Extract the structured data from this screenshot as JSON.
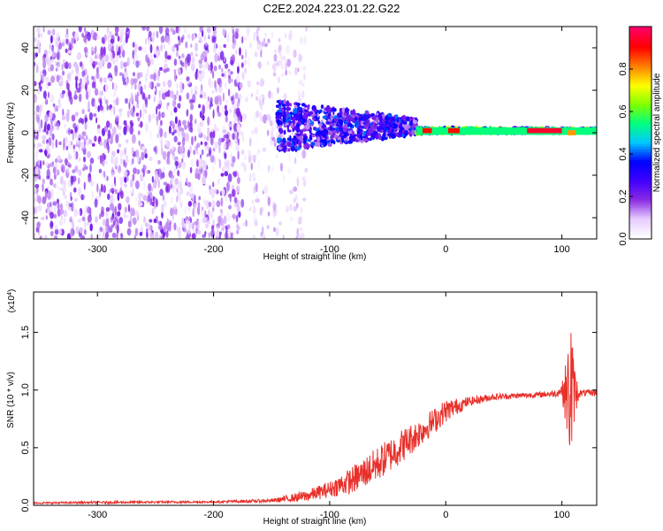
{
  "title": "C2E2.2024.223.01.22.G22",
  "chart_data": [
    {
      "type": "heatmap",
      "name": "spectrogram",
      "xlabel": "Height of straight line (km)",
      "ylabel": "Frequency (Hz)",
      "xlim": [
        -355,
        130
      ],
      "ylim": [
        -50,
        50
      ],
      "xticks": [
        -300,
        -200,
        -100,
        0,
        100
      ],
      "yticks": [
        -40,
        -20,
        0,
        20,
        40
      ],
      "colorbar": {
        "label": "Normalized spectral amplitude",
        "range": [
          0,
          1
        ],
        "ticks": [
          "0.0",
          "0.2",
          "0.4",
          "0.6",
          "0.8"
        ],
        "colormap": [
          "#ffffff",
          "#e6ccff",
          "#8a2be2",
          "#4000ff",
          "#0000ff",
          "#00c8ff",
          "#00ff80",
          "#80ff00",
          "#ffff00",
          "#ff8000",
          "#ff0000",
          "#ff0066"
        ]
      },
      "regions": [
        {
          "x": [
            -355,
            -175
          ],
          "freq_span": [
            -50,
            50
          ],
          "amplitude": 0.13,
          "description_level": "noise"
        },
        {
          "x": [
            -175,
            -120
          ],
          "freq_span": [
            -50,
            50
          ],
          "amplitude": 0.08
        },
        {
          "x": [
            -145,
            -25
          ],
          "freq_center": 3,
          "freq_halfwidth": 10,
          "amplitude": 0.3
        },
        {
          "x": [
            -25,
            130
          ],
          "freq_center": 1,
          "freq_halfwidth": 2,
          "amplitude": 0.55
        }
      ],
      "peaks": [
        {
          "x": [
            70,
            100
          ],
          "freq": 1,
          "amplitude": 0.95
        },
        {
          "x": [
            -20,
            -12
          ],
          "freq": 1,
          "amplitude": 0.9
        },
        {
          "x": [
            2,
            12
          ],
          "freq": 1,
          "amplitude": 0.9
        },
        {
          "x": [
            105,
            112
          ],
          "freq": 0,
          "amplitude": 0.8
        }
      ]
    },
    {
      "type": "line",
      "name": "snr",
      "xlabel": "Height of straight line (km)",
      "ylabel": "SNR (10 * v/v)",
      "ylabel_multiplier": "(x10",
      "ylabel_exponent": "4",
      "ylabel_multiplier_close": ")",
      "xlim": [
        -355,
        130
      ],
      "ylim": [
        0,
        1.85
      ],
      "xticks": [
        -300,
        -200,
        -100,
        0,
        100
      ],
      "yticks": [
        "0.0",
        "0.5",
        "1.0",
        "1.5"
      ],
      "ytick_values": [
        0,
        0.5,
        1.0,
        1.5
      ],
      "color": "#e8302a",
      "series": [
        {
          "x": [
            -355,
            -300,
            -200,
            -150,
            -120,
            -100,
            -80,
            -60,
            -40,
            -20,
            0,
            20,
            40,
            60,
            80,
            95,
            100,
            105,
            108,
            110,
            115,
            130
          ],
          "values": [
            0.02,
            0.025,
            0.03,
            0.04,
            0.08,
            0.14,
            0.22,
            0.35,
            0.5,
            0.65,
            0.82,
            0.9,
            0.94,
            0.95,
            0.96,
            0.97,
            1.0,
            0.95,
            1.0,
            0.98,
            0.97,
            0.98
          ],
          "noise": [
            0.008,
            0.01,
            0.01,
            0.015,
            0.05,
            0.07,
            0.12,
            0.15,
            0.15,
            0.12,
            0.1,
            0.04,
            0.03,
            0.025,
            0.025,
            0.03,
            0.05,
            0.4,
            0.8,
            0.3,
            0.03,
            0.03
          ]
        }
      ]
    }
  ]
}
